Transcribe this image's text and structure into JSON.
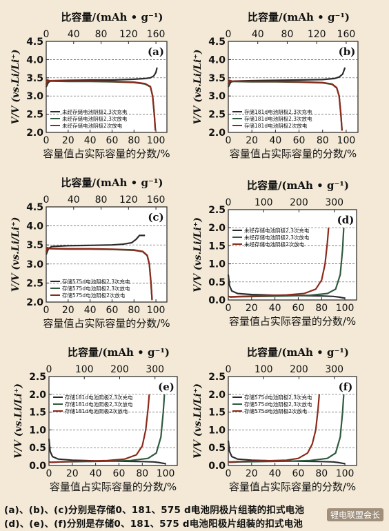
{
  "captions": {
    "line1": "(a)、(b)、(c)分别是存储0、181、575 d电池阴极片组装的扣式电池",
    "line2": "(d)、(e)、(f)分别是存储0、181、575 d电池阳极片组装的扣式电池"
  },
  "watermark": "锂电联盟会长",
  "colors": {
    "charge": "#2b2b2b",
    "discharge3": "#2f5a3e",
    "discharge2": "#8b2a1a",
    "panel_bg": "#ffffff",
    "grid": "#555555"
  },
  "chart_data": [
    {
      "panel": "(a)",
      "type": "line",
      "top_axis_label": "比容量/(mAh • g⁻¹)",
      "top_ticks": [
        "0",
        "40",
        "80",
        "120",
        "160"
      ],
      "xlabel": "容量值占实际容量的分数/%",
      "ylabel": "V/V (vs.Li/Li⁺)",
      "x_ticks": [
        "0",
        "20",
        "40",
        "60",
        "80",
        "100"
      ],
      "y_ticks": [
        "2.0",
        "2.5",
        "3.0",
        "3.5",
        "4.0",
        "4.5"
      ],
      "xlim": [
        0,
        110
      ],
      "ylim": [
        2.0,
        4.5
      ],
      "legend": "lower-left",
      "series": [
        {
          "name": "未经存储电池阴极2,3次充电",
          "color": "#2b2b2b",
          "x": [
            0,
            2,
            5,
            20,
            40,
            60,
            80,
            90,
            95,
            98,
            100,
            101
          ],
          "y": [
            3.25,
            3.38,
            3.42,
            3.43,
            3.44,
            3.44,
            3.46,
            3.48,
            3.5,
            3.55,
            3.65,
            3.78
          ]
        },
        {
          "name": "未经存储电池阴极2,3次放电",
          "color": "#2f5a3e",
          "x": [
            0,
            1,
            3,
            20,
            40,
            60,
            80,
            90,
            95,
            97,
            98.5,
            99.5
          ],
          "y": [
            3.3,
            3.43,
            3.41,
            3.4,
            3.4,
            3.39,
            3.37,
            3.33,
            3.25,
            3.0,
            2.5,
            2.05
          ]
        },
        {
          "name": "未经存储电池阴极2次放电",
          "color": "#8b2a1a",
          "x": [
            0,
            1,
            3,
            20,
            40,
            60,
            80,
            90,
            95,
            97,
            98.5,
            99.5
          ],
          "y": [
            3.32,
            3.44,
            3.42,
            3.41,
            3.41,
            3.4,
            3.38,
            3.34,
            3.26,
            3.0,
            2.5,
            2.05
          ]
        }
      ]
    },
    {
      "panel": "(b)",
      "type": "line",
      "top_axis_label": "比容量/(mAh • g⁻¹)",
      "top_ticks": [
        "0",
        "40",
        "80",
        "120",
        "160"
      ],
      "xlabel": "容量值占实际容量的分数/%",
      "ylabel": "V/V (vs.Li/Li⁺)",
      "x_ticks": [
        "0",
        "20",
        "40",
        "60",
        "80",
        "100"
      ],
      "y_ticks": [
        "2.0",
        "2.5",
        "3.0",
        "3.5",
        "4.0",
        "4.5"
      ],
      "xlim": [
        0,
        110
      ],
      "ylim": [
        2.0,
        4.5
      ],
      "legend": "lower-left",
      "series": [
        {
          "name": "存储181d电池阴极2,3次充电",
          "color": "#2b2b2b",
          "x": [
            0,
            2,
            5,
            20,
            40,
            60,
            80,
            90,
            94,
            97,
            99
          ],
          "y": [
            3.25,
            3.38,
            3.41,
            3.42,
            3.43,
            3.44,
            3.45,
            3.48,
            3.52,
            3.6,
            3.78
          ]
        },
        {
          "name": "存储181d电池阴极2,3次放电",
          "color": "#2f5a3e",
          "x": [
            0,
            1,
            3,
            20,
            40,
            60,
            80,
            88,
            92,
            94,
            95.5,
            96.5
          ],
          "y": [
            3.3,
            3.42,
            3.4,
            3.39,
            3.39,
            3.38,
            3.36,
            3.32,
            3.22,
            3.0,
            2.5,
            2.05
          ]
        },
        {
          "name": "存储181d电池阴极2次放电",
          "color": "#8b2a1a",
          "x": [
            0,
            1,
            3,
            20,
            40,
            60,
            80,
            88,
            92,
            94,
            95.5,
            96.5
          ],
          "y": [
            3.32,
            3.43,
            3.41,
            3.4,
            3.4,
            3.39,
            3.37,
            3.33,
            3.23,
            3.0,
            2.5,
            2.05
          ]
        }
      ]
    },
    {
      "panel": "(c)",
      "type": "line",
      "top_axis_label": "比容量/(mAh • g⁻¹)",
      "top_ticks": [
        "0",
        "40",
        "80",
        "120",
        "160"
      ],
      "xlabel": "容量值占实际容量的分数/%",
      "ylabel": "V/V (vs.Li/Li⁺)",
      "x_ticks": [
        "0",
        "20",
        "40",
        "60",
        "80",
        "100"
      ],
      "y_ticks": [
        "2.0",
        "2.5",
        "3.0",
        "3.5",
        "4.0",
        "4.5"
      ],
      "xlim": [
        0,
        110
      ],
      "ylim": [
        2.0,
        4.5
      ],
      "legend": "lower-left",
      "series": [
        {
          "name": "存储575d电池阴极2,3次充电",
          "color": "#2b2b2b",
          "x": [
            0,
            2,
            5,
            20,
            40,
            60,
            70,
            78,
            82,
            85,
            90
          ],
          "y": [
            3.25,
            3.4,
            3.46,
            3.48,
            3.49,
            3.5,
            3.52,
            3.56,
            3.65,
            3.75,
            3.75
          ]
        },
        {
          "name": "存储575d电池阴极2,3次放电",
          "color": "#2f5a3e",
          "x": [
            0,
            1,
            3,
            20,
            40,
            60,
            80,
            88,
            92,
            94,
            95.5,
            96.5
          ],
          "y": [
            3.3,
            3.42,
            3.4,
            3.39,
            3.39,
            3.38,
            3.36,
            3.32,
            3.22,
            3.0,
            2.5,
            2.05
          ]
        },
        {
          "name": "存储575d电池阴极2次放电",
          "color": "#8b2a1a",
          "x": [
            0,
            1,
            3,
            20,
            40,
            60,
            80,
            88,
            92,
            94,
            95.5,
            96.5
          ],
          "y": [
            3.32,
            3.43,
            3.41,
            3.4,
            3.4,
            3.39,
            3.37,
            3.33,
            3.23,
            3.0,
            2.5,
            2.05
          ]
        }
      ]
    },
    {
      "panel": "(d)",
      "type": "line",
      "top_axis_label": "比容量/(mAh • g⁻¹)",
      "top_ticks": [
        "0",
        "100",
        "200",
        "300"
      ],
      "xlabel": "容量值占实际容量的分数/%",
      "ylabel": "V/V (vs.Li/Li⁺)",
      "x_ticks": [
        "0",
        "20",
        "40",
        "60",
        "80",
        "100"
      ],
      "y_ticks": [
        "0.0",
        "0.5",
        "1.0",
        "1.5",
        "2.0",
        "2.5"
      ],
      "xlim": [
        0,
        110
      ],
      "ylim": [
        0.0,
        2.5
      ],
      "legend": "upper-left",
      "series": [
        {
          "name": "未经存储电池阴极2,3次充电",
          "color": "#2b2b2b",
          "x": [
            0,
            1,
            3,
            8,
            20,
            40,
            60,
            80,
            90,
            95,
            100
          ],
          "y": [
            0.7,
            0.4,
            0.25,
            0.18,
            0.15,
            0.13,
            0.12,
            0.11,
            0.1,
            0.08,
            0.05
          ]
        },
        {
          "name": "未经存储电池阴极2,3次放电",
          "color": "#2f5a3e",
          "x": [
            0,
            2,
            10,
            30,
            50,
            70,
            85,
            92,
            96,
            98,
            99
          ],
          "y": [
            0.1,
            0.08,
            0.09,
            0.1,
            0.11,
            0.13,
            0.18,
            0.3,
            0.7,
            1.4,
            2.0
          ]
        },
        {
          "name": "未经存储电池阴极2次放电",
          "color": "#8b2a1a",
          "x": [
            0,
            2,
            10,
            30,
            50,
            65,
            75,
            80,
            83,
            85,
            86
          ],
          "y": [
            0.1,
            0.09,
            0.1,
            0.12,
            0.14,
            0.18,
            0.3,
            0.55,
            1.0,
            1.6,
            2.0
          ]
        }
      ]
    },
    {
      "panel": "(e)",
      "type": "line",
      "top_axis_label": "比容量/(mAh • g⁻¹)",
      "top_ticks": [
        "0",
        "100",
        "200",
        "300"
      ],
      "xlabel": "容量值占实际容量的分数/%",
      "ylabel": "V/V (vs.Li/Li⁺)",
      "x_ticks": [
        "0",
        "20",
        "40",
        "60",
        "80",
        "100"
      ],
      "y_ticks": [
        "0.0",
        "0.5",
        "1.0",
        "1.5",
        "2.0",
        "2.5"
      ],
      "xlim": [
        0,
        110
      ],
      "ylim": [
        0.0,
        2.5
      ],
      "legend": "upper-left",
      "series": [
        {
          "name": "存储181d电池阴极2,3次充电",
          "color": "#2b2b2b",
          "x": [
            0,
            1,
            3,
            8,
            20,
            40,
            60,
            80,
            90,
            95,
            100
          ],
          "y": [
            0.75,
            0.4,
            0.25,
            0.18,
            0.15,
            0.13,
            0.12,
            0.11,
            0.1,
            0.08,
            0.05
          ]
        },
        {
          "name": "存储181d电池阴极2,3次放电",
          "color": "#2f5a3e",
          "x": [
            0,
            2,
            10,
            30,
            50,
            70,
            85,
            92,
            96,
            98,
            99
          ],
          "y": [
            0.1,
            0.09,
            0.1,
            0.11,
            0.12,
            0.14,
            0.2,
            0.35,
            0.8,
            1.5,
            2.0
          ]
        },
        {
          "name": "存储181d电池阴极2次放电",
          "color": "#8b2a1a",
          "x": [
            0,
            2,
            10,
            30,
            50,
            65,
            75,
            80,
            83,
            85,
            86
          ],
          "y": [
            0.1,
            0.09,
            0.1,
            0.12,
            0.14,
            0.18,
            0.3,
            0.55,
            1.0,
            1.6,
            2.0
          ]
        }
      ]
    },
    {
      "panel": "(f)",
      "type": "line",
      "top_axis_label": "比容量/(mAh • g⁻¹)",
      "top_ticks": [
        "0",
        "100",
        "200",
        "300"
      ],
      "xlabel": "容量值占实际容量的分数/%",
      "ylabel": "V/V (vs.Li/Li⁺)",
      "x_ticks": [
        "0",
        "20",
        "40",
        "60",
        "80",
        "100"
      ],
      "y_ticks": [
        "0.0",
        "0.5",
        "1.0",
        "1.5",
        "2.0",
        "2.5"
      ],
      "xlim": [
        0,
        110
      ],
      "ylim": [
        0.0,
        2.5
      ],
      "legend": "upper-left",
      "series": [
        {
          "name": "存储575d电池阴极2,3次充电",
          "color": "#2b2b2b",
          "x": [
            0,
            1,
            3,
            8,
            20,
            40,
            60,
            80,
            90,
            95,
            100
          ],
          "y": [
            0.7,
            0.4,
            0.25,
            0.18,
            0.15,
            0.13,
            0.12,
            0.11,
            0.1,
            0.08,
            0.05
          ]
        },
        {
          "name": "存储575d电池阴极2,3次放电",
          "color": "#2f5a3e",
          "x": [
            0,
            2,
            10,
            30,
            50,
            70,
            85,
            92,
            96,
            98,
            99
          ],
          "y": [
            0.1,
            0.09,
            0.1,
            0.11,
            0.12,
            0.14,
            0.2,
            0.35,
            0.8,
            1.5,
            2.0
          ]
        },
        {
          "name": "存储575d电池阴极2次放电",
          "color": "#8b2a1a",
          "x": [
            0,
            2,
            10,
            30,
            50,
            60,
            68,
            72,
            75,
            77,
            78
          ],
          "y": [
            0.1,
            0.1,
            0.11,
            0.13,
            0.15,
            0.2,
            0.35,
            0.6,
            1.0,
            1.6,
            2.0
          ]
        }
      ]
    }
  ]
}
